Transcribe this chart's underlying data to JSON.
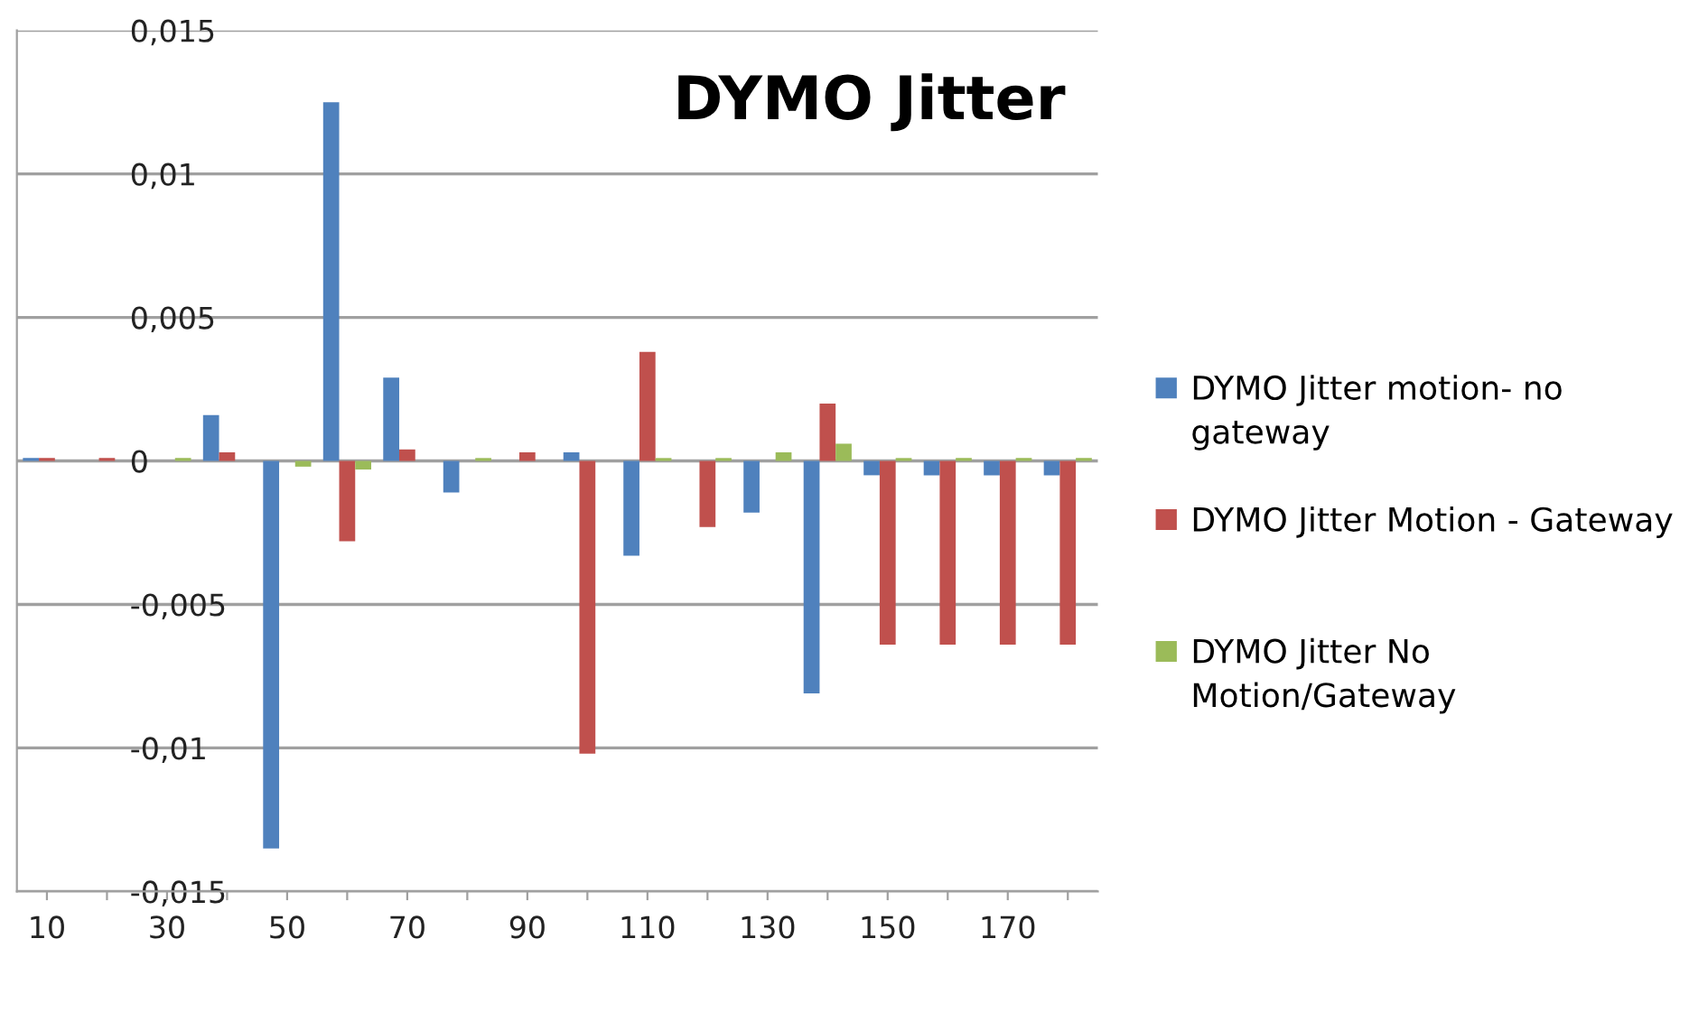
{
  "chart_data": {
    "type": "bar",
    "title": "DYMO Jitter",
    "categories": [
      "10",
      null,
      "30",
      null,
      "50",
      null,
      "70",
      null,
      "90",
      null,
      "110",
      null,
      "130",
      null,
      "150",
      null,
      "170",
      null
    ],
    "series": [
      {
        "name": "DYMO Jitter motion- no gateway",
        "color": "#4f81bd",
        "values": [
          0.0001,
          0,
          0,
          0.0016,
          -0.0135,
          0.0125,
          0.0029,
          -0.0011,
          0,
          0.0003,
          -0.0033,
          0,
          -0.0018,
          -0.0081,
          -0.0005,
          -0.0005,
          -0.0005,
          -0.0005
        ]
      },
      {
        "name": "DYMO Jitter Motion - Gateway",
        "color": "#c0504d",
        "values": [
          0.0001,
          0.0001,
          0,
          0.0003,
          0,
          -0.0028,
          0.0004,
          0,
          0.0003,
          -0.0102,
          0.0038,
          -0.0023,
          0,
          0.002,
          -0.0064,
          -0.0064,
          -0.0064,
          -0.0064
        ]
      },
      {
        "name": "DYMO Jitter No Motion/Gateway",
        "color": "#9bbb59",
        "values": [
          0,
          0,
          0.0001,
          0,
          -0.0002,
          -0.0003,
          0,
          0.0001,
          0,
          0,
          0.0001,
          0.0001,
          0.0003,
          0.0006,
          0.0001,
          0.0001,
          0.0001,
          0.0001
        ]
      }
    ],
    "ylim": [
      -0.015,
      0.015
    ],
    "yticks": [
      {
        "value": -0.015,
        "label": "-0,015"
      },
      {
        "value": -0.01,
        "label": "-0,01"
      },
      {
        "value": -0.005,
        "label": "-0,005"
      },
      0,
      {
        "value": 0.005,
        "label": "0,005"
      },
      {
        "value": 0.01,
        "label": "0,01"
      },
      {
        "value": 0.015,
        "label": "0,015"
      }
    ],
    "grid": "y",
    "legend": "right"
  }
}
